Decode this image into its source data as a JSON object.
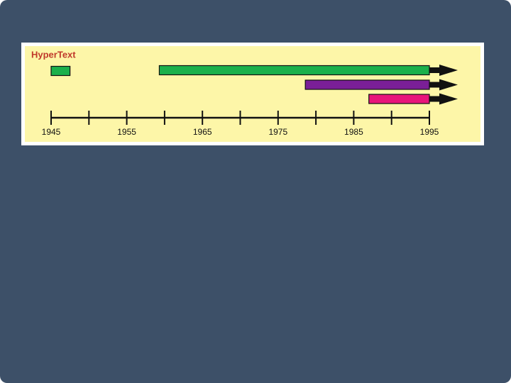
{
  "chart_data": {
    "type": "timeline",
    "title": "HyperText",
    "xlim": [
      1945,
      1995
    ],
    "xticks": [
      1945,
      1955,
      1965,
      1975,
      1985,
      1995
    ],
    "minor_xticks": [
      1950,
      1960,
      1970,
      1980,
      1990
    ],
    "series": [
      {
        "color": "#1bb04b",
        "start": 1945,
        "end": 1947.5,
        "arrow": false
      },
      {
        "color": "#1bb04b",
        "start": 1959.3,
        "end": 1995,
        "arrow": true
      },
      {
        "color": "#7a1f97",
        "start": 1978.6,
        "end": 1995,
        "arrow": true
      },
      {
        "color": "#e8147a",
        "start": 1987,
        "end": 1995,
        "arrow": true
      }
    ]
  }
}
